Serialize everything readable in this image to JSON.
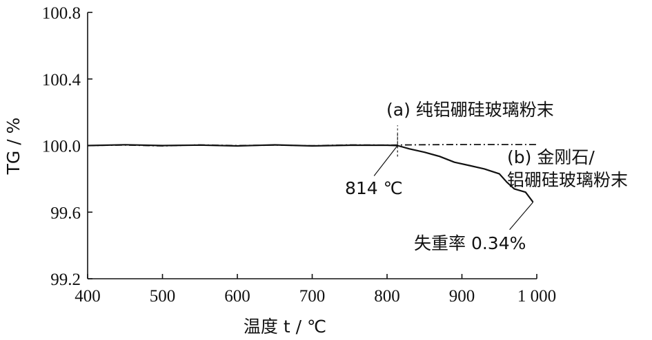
{
  "chart_data": {
    "type": "line",
    "xlabel": "温度 t / ℃",
    "ylabel": "TG / %",
    "xlim": [
      400,
      1000
    ],
    "ylim": [
      99.2,
      100.8
    ],
    "x_ticks": [
      "400",
      "500",
      "600",
      "700",
      "800",
      "900",
      "1 000"
    ],
    "y_ticks": [
      "99.2",
      "99.6",
      "100.0",
      "100.4",
      "100.8"
    ],
    "grid": false,
    "series": [
      {
        "name": "(a) 纯铝硼硅玻璃粉末",
        "line_style": "dash-dot",
        "x": [
          400,
          450,
          500,
          550,
          600,
          650,
          700,
          750,
          800,
          850,
          900,
          950,
          1000
        ],
        "y": [
          100.0,
          100.003,
          99.998,
          100.004,
          100.0,
          100.003,
          99.999,
          100.004,
          100.003,
          100.005,
          100.006,
          100.006,
          100.006
        ]
      },
      {
        "name": "(b) 金刚石/铝硼硅玻璃粉末",
        "line_style": "solid",
        "x": [
          400,
          450,
          500,
          550,
          600,
          650,
          700,
          750,
          800,
          814,
          830,
          850,
          870,
          890,
          910,
          930,
          950,
          960,
          970,
          985,
          995
        ],
        "y": [
          100.0,
          100.005,
          100.0,
          100.003,
          99.998,
          100.004,
          99.998,
          100.002,
          100.002,
          100.0,
          99.98,
          99.96,
          99.935,
          99.9,
          99.88,
          99.86,
          99.83,
          99.78,
          99.74,
          99.72,
          99.66
        ]
      }
    ],
    "annotations": {
      "label_a": "(a) 纯铝硼硅玻璃粉末",
      "label_b_line1": "(b) 金刚石/",
      "label_b_line2": "铝硼硅玻璃粉末",
      "onset": "814 ℃",
      "onset_x": 814,
      "mass_loss": "失重率 0.34%"
    }
  }
}
